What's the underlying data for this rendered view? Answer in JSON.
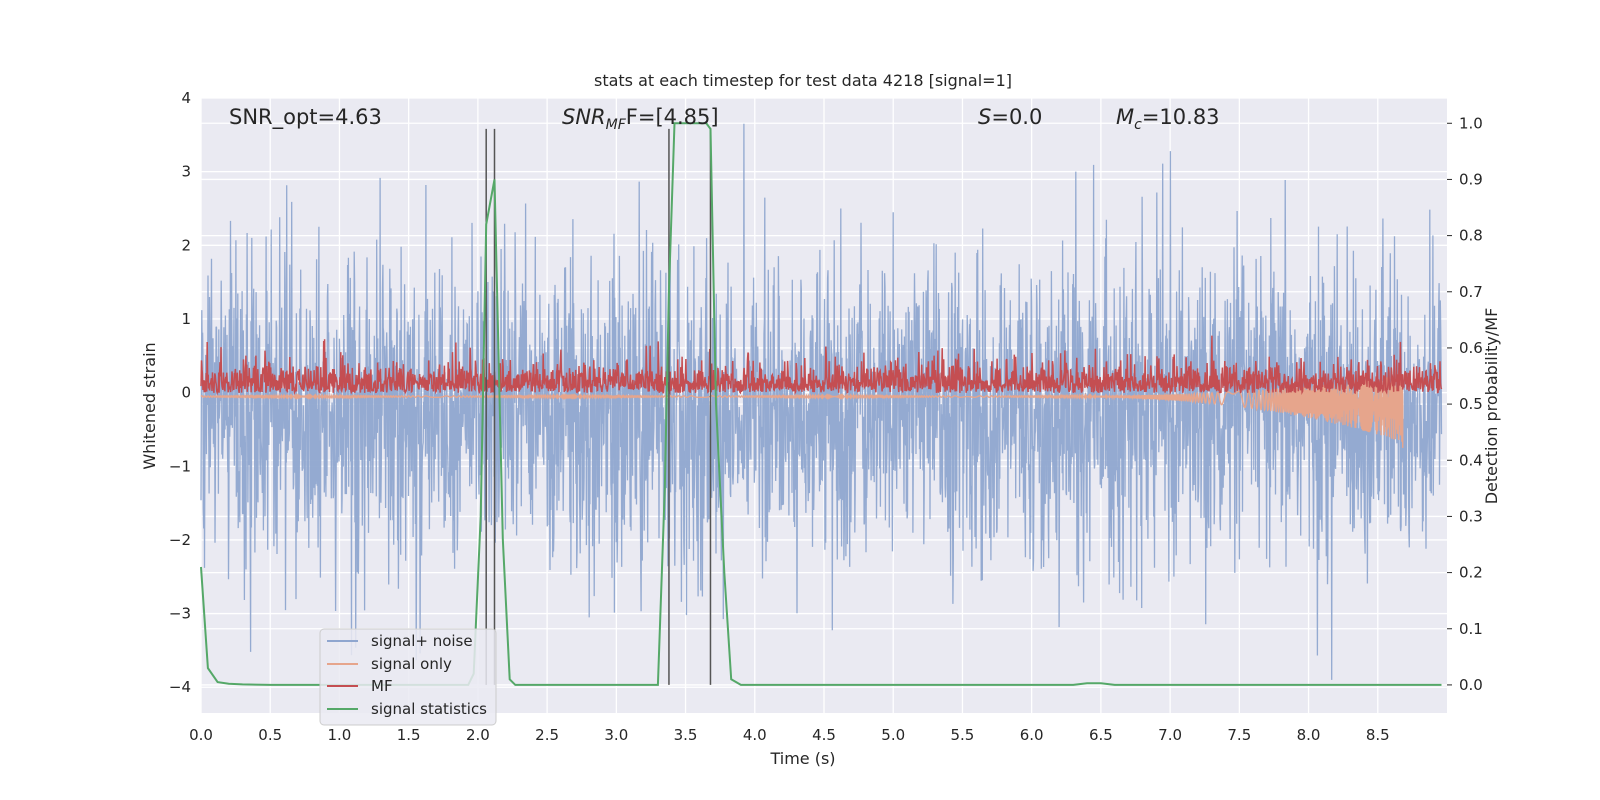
{
  "chart_data": {
    "type": "line",
    "title": "stats at each timestep for test data 4218 [signal=1]",
    "xlabel": "Time (s)",
    "ylabel": "Whitened strain",
    "ylabel_right": "Detection probability/MF",
    "xlim": [
      0.0,
      9.0
    ],
    "ylim": [
      -4.35,
      4.0
    ],
    "ylim_right": [
      -0.05,
      1.045
    ],
    "x_ticks": [
      0.0,
      0.5,
      1.0,
      1.5,
      2.0,
      2.5,
      3.0,
      3.5,
      4.0,
      4.5,
      5.0,
      5.5,
      6.0,
      6.5,
      7.0,
      7.5,
      8.0,
      8.5
    ],
    "x_tick_labels": [
      "0.0",
      "0.5",
      "1.0",
      "1.5",
      "2.0",
      "2.5",
      "3.0",
      "3.5",
      "4.0",
      "4.5",
      "5.0",
      "5.5",
      "6.0",
      "6.5",
      "7.0",
      "7.5",
      "8.0",
      "8.5"
    ],
    "y_ticks": [
      -4,
      -3,
      -2,
      -1,
      0,
      1,
      2,
      3,
      4
    ],
    "y_tick_labels": [
      "−4",
      "−3",
      "−2",
      "−1",
      "0",
      "1",
      "2",
      "3",
      "4"
    ],
    "y_ticks_right": [
      0.0,
      0.1,
      0.2,
      0.3,
      0.4,
      0.5,
      0.6,
      0.7,
      0.8,
      0.9,
      1.0
    ],
    "y_tick_labels_right": [
      "0.0",
      "0.1",
      "0.2",
      "0.3",
      "0.4",
      "0.5",
      "0.6",
      "0.7",
      "0.8",
      "0.9",
      "1.0"
    ],
    "annotations": {
      "snr_opt": "SNR_opt=4.63",
      "snr_mf_main": "SNR",
      "snr_mf_sub": "MF",
      "snr_mf_rest": "F=[4.85]",
      "s_main": "S",
      "s_rest": "=0.0",
      "mc_main": "M",
      "mc_sub": "c",
      "mc_rest": "=10.83"
    },
    "legend": {
      "position": "lower-left",
      "entries": [
        {
          "label": "signal+ noise",
          "color": "#8fa6cf"
        },
        {
          "label": "signal only",
          "color": "#e6a58c"
        },
        {
          "label": "MF",
          "color": "#c44e52"
        },
        {
          "label": "signal statistics",
          "color": "#55a868"
        }
      ]
    },
    "series": {
      "signal_plus_noise": {
        "name": "signal+ noise",
        "color": "#8fa6cf",
        "axis": "left",
        "x_range": [
          0.0,
          8.96
        ],
        "mean": -0.25,
        "typical_range": [
          -1.7,
          1.4
        ],
        "extreme_range": [
          -3.9,
          3.65
        ]
      },
      "signal_only": {
        "name": "signal only",
        "color": "#e6a58c",
        "axis": "left",
        "chirp_start": 6.2,
        "chirp_end": 8.68,
        "final_min": -0.75,
        "final_max": 0.22
      },
      "mf": {
        "name": "MF",
        "color": "#c44e52",
        "axis": "right",
        "x_range": [
          0.0,
          8.96
        ],
        "baseline": 0.53,
        "typical_range": [
          0.5,
          0.6
        ],
        "max": 0.65
      },
      "signal_statistics": {
        "name": "signal statistics",
        "color": "#55a868",
        "axis": "right",
        "x": [
          0.0,
          0.05,
          0.12,
          0.2,
          0.3,
          0.5,
          1.0,
          1.5,
          1.93,
          1.97,
          2.02,
          2.06,
          2.12,
          2.18,
          2.23,
          2.27,
          2.32,
          3.0,
          3.3,
          3.35,
          3.38,
          3.42,
          3.45,
          3.55,
          3.65,
          3.68,
          3.72,
          3.78,
          3.83,
          3.9,
          5.0,
          6.0,
          6.3,
          6.4,
          6.5,
          6.6,
          7.0,
          8.0,
          8.96
        ],
        "y": [
          0.21,
          0.03,
          0.005,
          0.002,
          0.001,
          0.0,
          0.0,
          0.0,
          0.0,
          0.02,
          0.3,
          0.82,
          0.9,
          0.26,
          0.01,
          0.0,
          0.0,
          0.0,
          0.0,
          0.35,
          0.7,
          1.0,
          1.0,
          1.0,
          1.0,
          0.99,
          0.5,
          0.2,
          0.01,
          0.0,
          0.0,
          0.0,
          0.0,
          0.003,
          0.003,
          0.0,
          0.0,
          0.0,
          0.0
        ]
      }
    },
    "vertical_markers": {
      "color": "#555555",
      "x": [
        2.06,
        2.12,
        3.38,
        3.68
      ],
      "y_top": 0.99,
      "y_bottom": 0.0
    },
    "grid": true
  }
}
